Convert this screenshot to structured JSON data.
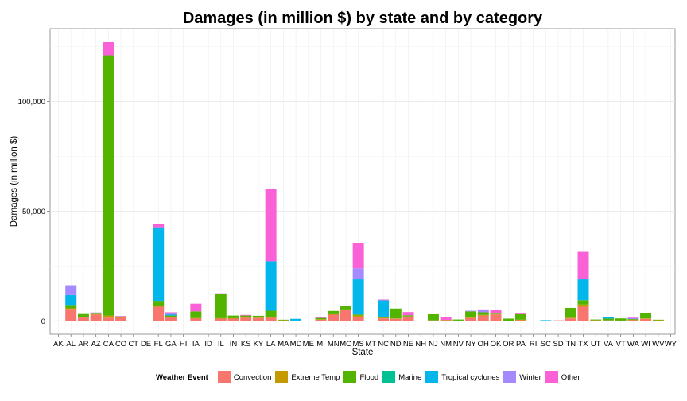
{
  "title": "Damages (in million $) by state and by category",
  "legend_title": "Weather Event",
  "chart_data": {
    "type": "bar",
    "stacked": true,
    "title": "Damages (in million $) by state and by category",
    "xlabel": "State",
    "ylabel": "Damages (in million $)",
    "ylim": [
      0,
      130000
    ],
    "yticks": [
      0,
      50000,
      100000
    ],
    "ytick_labels": [
      "0",
      "50,000",
      "100,000"
    ],
    "grid": true,
    "legend_position": "bottom",
    "categories": [
      "AK",
      "AL",
      "AR",
      "AZ",
      "CA",
      "CO",
      "CT",
      "DE",
      "FL",
      "GA",
      "HI",
      "IA",
      "ID",
      "IL",
      "IN",
      "KS",
      "KY",
      "LA",
      "MA",
      "MD",
      "ME",
      "MI",
      "MN",
      "MO",
      "MS",
      "MT",
      "NC",
      "ND",
      "NE",
      "NH",
      "NJ",
      "NM",
      "NV",
      "NY",
      "OH",
      "OK",
      "OR",
      "PA",
      "RI",
      "SC",
      "SD",
      "TN",
      "TX",
      "UT",
      "VA",
      "VT",
      "WA",
      "WI",
      "WV",
      "WY"
    ],
    "series": [
      {
        "name": "Convection",
        "color": "#F8766D",
        "values": [
          200,
          5500,
          1600,
          3000,
          1500,
          1600,
          0,
          0,
          6500,
          1600,
          0,
          1300,
          100,
          1200,
          1200,
          1500,
          1400,
          1500,
          300,
          200,
          100,
          700,
          3000,
          5000,
          2000,
          100,
          1200,
          1000,
          2000,
          0,
          300,
          400,
          200,
          1400,
          2500,
          3000,
          100,
          500,
          0,
          100,
          300,
          1200,
          6500,
          300,
          300,
          200,
          400,
          1000,
          300,
          0
        ]
      },
      {
        "name": "Extreme Temp",
        "color": "#C49A00",
        "values": [
          0,
          300,
          200,
          200,
          1000,
          100,
          0,
          0,
          200,
          200,
          0,
          100,
          0,
          100,
          100,
          200,
          200,
          200,
          100,
          0,
          0,
          100,
          100,
          300,
          500,
          0,
          300,
          200,
          100,
          0,
          0,
          100,
          0,
          200,
          300,
          200,
          0,
          100,
          0,
          0,
          0,
          300,
          1000,
          100,
          0,
          0,
          200,
          200,
          100,
          0
        ]
      },
      {
        "name": "Flood",
        "color": "#53B400",
        "values": [
          0,
          1500,
          1400,
          200,
          118500,
          400,
          0,
          0,
          2500,
          700,
          0,
          3000,
          0,
          11000,
          1200,
          800,
          800,
          3000,
          200,
          0,
          0,
          600,
          1500,
          1500,
          500,
          0,
          500,
          4500,
          500,
          0,
          2800,
          0,
          500,
          2800,
          1200,
          200,
          1000,
          2500,
          0,
          0,
          0,
          4500,
          2000,
          300,
          800,
          1000,
          300,
          2500,
          200,
          0
        ]
      },
      {
        "name": "Marine",
        "color": "#00C094",
        "values": [
          0,
          0,
          0,
          0,
          0,
          0,
          0,
          0,
          0,
          0,
          0,
          0,
          0,
          0,
          0,
          0,
          0,
          0,
          0,
          0,
          0,
          0,
          0,
          0,
          0,
          0,
          0,
          0,
          0,
          0,
          0,
          0,
          0,
          0,
          0,
          0,
          0,
          0,
          0,
          0,
          0,
          0,
          0,
          0,
          0,
          0,
          0,
          0,
          0,
          0
        ]
      },
      {
        "name": "Tropical cyclones",
        "color": "#00B6EB",
        "values": [
          0,
          4500,
          0,
          0,
          0,
          0,
          0,
          0,
          33500,
          400,
          0,
          0,
          0,
          0,
          0,
          0,
          0,
          22500,
          0,
          800,
          0,
          0,
          0,
          0,
          16000,
          0,
          7500,
          0,
          0,
          0,
          0,
          0,
          0,
          0,
          0,
          0,
          0,
          0,
          0,
          300,
          0,
          0,
          9500,
          0,
          800,
          0,
          0,
          0,
          0,
          0
        ]
      },
      {
        "name": "Winter",
        "color": "#A58AFF",
        "values": [
          0,
          4500,
          0,
          500,
          0,
          0,
          0,
          0,
          0,
          700,
          0,
          0,
          0,
          0,
          0,
          0,
          0,
          0,
          0,
          0,
          0,
          0,
          0,
          0,
          5000,
          0,
          0,
          0,
          0,
          0,
          0,
          0,
          0,
          300,
          1000,
          0,
          0,
          0,
          0,
          0,
          0,
          0,
          0,
          0,
          0,
          0,
          500,
          0,
          0,
          0
        ]
      },
      {
        "name": "Other",
        "color": "#FB61D7",
        "values": [
          0,
          0,
          0,
          0,
          6000,
          200,
          0,
          0,
          1500,
          400,
          0,
          3500,
          0,
          300,
          0,
          300,
          0,
          33000,
          0,
          0,
          0,
          300,
          0,
          100,
          11500,
          0,
          300,
          0,
          1500,
          0,
          0,
          1200,
          0,
          0,
          300,
          1500,
          0,
          300,
          0,
          0,
          0,
          0,
          12500,
          0,
          0,
          0,
          200,
          0,
          0,
          0
        ]
      }
    ]
  }
}
